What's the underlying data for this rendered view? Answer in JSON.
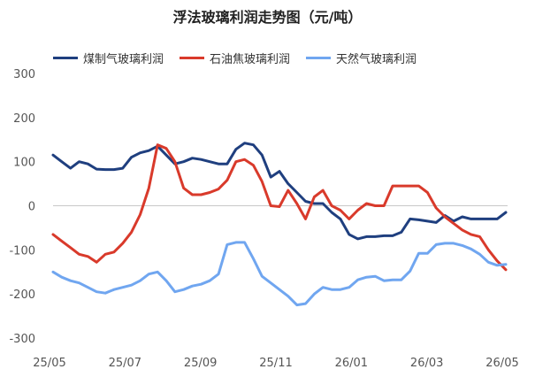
{
  "chart_data": {
    "type": "line",
    "title": "浮法玻璃利润走势图（元/吨）",
    "xlabel": "",
    "ylabel": "",
    "ylim": [
      -300,
      300
    ],
    "yticks": [
      -300,
      -200,
      -100,
      0,
      100,
      200,
      300
    ],
    "xticks": [
      "25/05",
      "25/07",
      "25/09",
      "25/11",
      "26/01",
      "26/03",
      "26/05"
    ],
    "grid": false,
    "legend": "top",
    "series": [
      {
        "name": "煤制气玻璃利润",
        "color": "#1f3f7f",
        "values": [
          115,
          100,
          85,
          100,
          95,
          83,
          82,
          82,
          85,
          110,
          120,
          125,
          135,
          115,
          95,
          100,
          108,
          105,
          100,
          95,
          95,
          128,
          142,
          138,
          115,
          65,
          78,
          50,
          30,
          10,
          5,
          5,
          -15,
          -30,
          -65,
          -75,
          -70,
          -70,
          -68,
          -68,
          -60,
          -30,
          -32,
          -35,
          -38,
          -22,
          -35,
          -25,
          -30,
          -30,
          -30,
          -30,
          -15
        ]
      },
      {
        "name": "石油焦玻璃利润",
        "color": "#d93a2b",
        "values": [
          -65,
          -80,
          -95,
          -110,
          -115,
          -128,
          -110,
          -105,
          -85,
          -60,
          -20,
          40,
          138,
          130,
          100,
          40,
          25,
          25,
          30,
          38,
          58,
          100,
          105,
          92,
          55,
          0,
          -2,
          35,
          5,
          -30,
          20,
          35,
          0,
          -10,
          -30,
          -10,
          5,
          0,
          0,
          45,
          45,
          45,
          45,
          30,
          -5,
          -25,
          -40,
          -55,
          -65,
          -70,
          -100,
          -125,
          -145
        ]
      },
      {
        "name": "天然气玻璃利润",
        "color": "#70a6f0",
        "values": [
          -150,
          -162,
          -170,
          -175,
          -185,
          -195,
          -198,
          -190,
          -185,
          -180,
          -170,
          -155,
          -150,
          -170,
          -195,
          -190,
          -182,
          -178,
          -170,
          -155,
          -88,
          -83,
          -83,
          -120,
          -160,
          -175,
          -190,
          -205,
          -225,
          -222,
          -200,
          -185,
          -190,
          -190,
          -185,
          -168,
          -162,
          -160,
          -170,
          -168,
          -168,
          -148,
          -108,
          -108,
          -88,
          -85,
          -85,
          -90,
          -98,
          -110,
          -128,
          -135,
          -133
        ]
      }
    ]
  }
}
